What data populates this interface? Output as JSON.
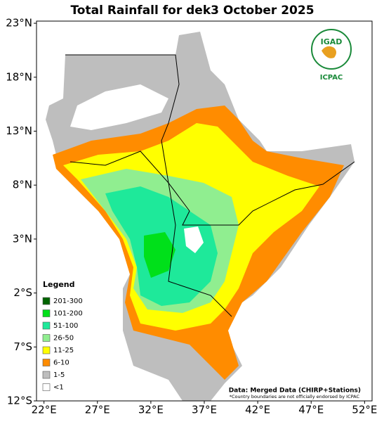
{
  "title": "Total Rainfall for dek3 October 2025",
  "map": {
    "lon_range": [
      21.3,
      52.7
    ],
    "lat_range": [
      -12,
      23.2
    ],
    "lon_ticks": [
      {
        "value": 22,
        "label": "22°E"
      },
      {
        "value": 27,
        "label": "27°E"
      },
      {
        "value": 32,
        "label": "32°E"
      },
      {
        "value": 37,
        "label": "37°E"
      },
      {
        "value": 42,
        "label": "42°E"
      },
      {
        "value": 47,
        "label": "47°E"
      },
      {
        "value": 52,
        "label": "52°E"
      }
    ],
    "lat_ticks": [
      {
        "value": 23,
        "label": "23°N"
      },
      {
        "value": 18,
        "label": "18°N"
      },
      {
        "value": 13,
        "label": "13°N"
      },
      {
        "value": 8,
        "label": "8°N"
      },
      {
        "value": 3,
        "label": "3°N"
      },
      {
        "value": -2,
        "label": "2°S"
      },
      {
        "value": -7,
        "label": "7°S"
      },
      {
        "value": -12,
        "label": "12°S"
      }
    ]
  },
  "legend": {
    "title": "Legend",
    "items": [
      {
        "label": "201-300",
        "color": "#006400"
      },
      {
        "label": "101-200",
        "color": "#00e01a"
      },
      {
        "label": "51-100",
        "color": "#1ee99a"
      },
      {
        "label": "26-50",
        "color": "#90ee90"
      },
      {
        "label": "11-25",
        "color": "#ffff00"
      },
      {
        "label": "6-10",
        "color": "#ff8c00"
      },
      {
        "label": "1-5",
        "color": "#bebebe"
      },
      {
        "label": "<1",
        "color": "#ffffff"
      }
    ]
  },
  "logo": {
    "top": "IGAD",
    "bottom": "ICPAC"
  },
  "credit": "Data: Merged Data (CHIRP+Stations)",
  "disclaimer": "*Country boundaries are not officially endorsed by ICPAC"
}
